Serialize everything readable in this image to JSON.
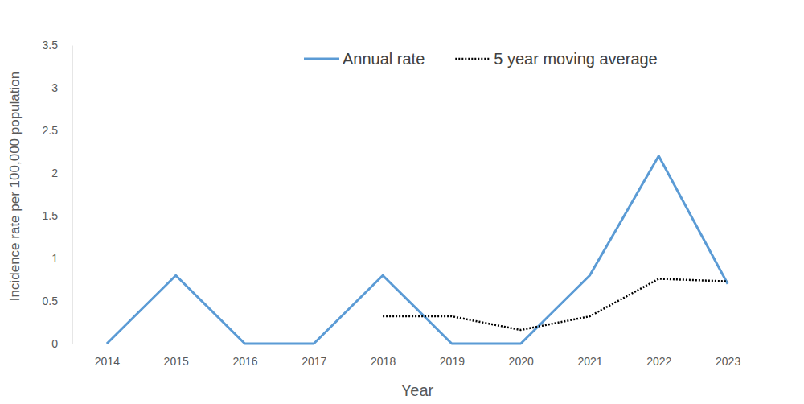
{
  "chart_data": {
    "type": "line",
    "x_label": "Year",
    "y_label": "Incidence rate per 100,000 population",
    "categories": [
      "2014",
      "2015",
      "2016",
      "2017",
      "2018",
      "2019",
      "2020",
      "2021",
      "2022",
      "2023"
    ],
    "series": [
      {
        "name": "Annual rate",
        "color": "#5b9bd5",
        "line_style": "solid",
        "values": [
          0,
          0.8,
          0,
          0,
          0.8,
          0,
          0,
          0.8,
          2.2,
          0.7
        ]
      },
      {
        "name": "5 year moving average",
        "color": "#000000",
        "line_style": "dotted",
        "values": [
          null,
          null,
          null,
          null,
          0.32,
          0.32,
          0.16,
          0.32,
          0.76,
          0.73
        ]
      }
    ],
    "ylim": [
      0,
      3.5
    ],
    "yticks": [
      0,
      0.5,
      1,
      1.5,
      2,
      2.5,
      3,
      3.5
    ],
    "grid": false,
    "legend": "top"
  }
}
